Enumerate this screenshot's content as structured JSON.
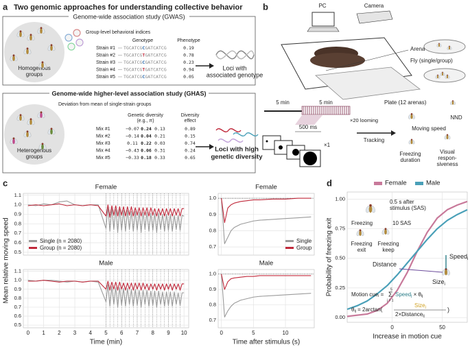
{
  "figure": {
    "a": {
      "label": "a",
      "title": "Two genomic approaches for understanding collective behavior",
      "gwas": {
        "title": "Genome-wide association study (GWAS)",
        "indices": "Group-level behavioral indices",
        "group": [
          "Homogenous",
          "groups"
        ],
        "genotype": "Genotype",
        "phenotype": "Phenotype",
        "rows": [
          {
            "name": "Strain #1",
            "prefix": "TGCATCG",
            "allele": "C",
            "suffix": "GATCATCG",
            "value": "0.19",
            "color": "#2b6cb0"
          },
          {
            "name": "Strain #2",
            "prefix": "TGCATCG",
            "allele": "T",
            "suffix": "GATCATCG",
            "value": "0.78",
            "color": "#c0283a"
          },
          {
            "name": "Strain #3",
            "prefix": "TGCATCG",
            "allele": "C",
            "suffix": "GATCATCG",
            "value": "0.23",
            "color": "#2b6cb0"
          },
          {
            "name": "Strain #4",
            "prefix": "TGCATCG",
            "allele": "T",
            "suffix": "GATCATCG",
            "value": "0.94",
            "color": "#c0283a"
          },
          {
            "name": "Strain #5",
            "prefix": "TGCATCG",
            "allele": "C",
            "suffix": "GATCATCG",
            "value": "0.05",
            "color": "#2b6cb0"
          }
        ],
        "result": [
          "Loci with",
          "associated genotype"
        ]
      },
      "ghas": {
        "title": "Genome-wide higher-level association study (GHAS)",
        "deviation": "Deviation from mean of single-strain groups",
        "group": [
          "Heterogenous",
          "groups"
        ],
        "diversity": [
          "Genetic diversity",
          "(e.g., π)"
        ],
        "effect": [
          "Diversity",
          "effect"
        ],
        "rows": [
          {
            "name": "Mix #1",
            "values": [
              "−0.07",
              "0.24",
              "0.13"
            ],
            "effect": "0.89",
            "color": "#5b3fa8"
          },
          {
            "name": "Mix #2",
            "values": [
              "−0.14",
              "0.04",
              "0.21"
            ],
            "effect": "0.15",
            "color": "#2b6cb0"
          },
          {
            "name": "Mix #3",
            "values": [
              "0.11",
              "0.22",
              "0.03"
            ],
            "effect": "0.74",
            "color": "#7a3fa8"
          },
          {
            "name": "Mix #4",
            "values": [
              "−0.43",
              "0.06",
              "0.31"
            ],
            "effect": "0.24",
            "color": "#c0283a"
          },
          {
            "name": "Mix #5",
            "values": [
              "−0.33",
              "0.18",
              "0.33"
            ],
            "effect": "0.65",
            "color": "#7a3fa8"
          }
        ],
        "result": [
          "Loci with high",
          "genetic diversity"
        ]
      }
    },
    "b": {
      "label": "b",
      "pc": "PC",
      "camera": "Camera",
      "arena": "Arena",
      "plate": "Plate (12 arenas)",
      "fly": "Fly (single/group)",
      "period1": "5 min",
      "period2": "5 min",
      "looming": "×20 looming",
      "duration": "500 ms",
      "repeat": "×1",
      "tracking": "Tracking",
      "speed": "Moving speed",
      "nnd": "NND",
      "freezing": [
        "Freezing",
        "duration"
      ],
      "visual": [
        "Visual",
        "respon-",
        "siveness"
      ]
    },
    "c": {
      "label": "c"
    },
    "d": {
      "label": "d",
      "sas": [
        "0.5 s after",
        "stimulus (SAS)"
      ],
      "freezing": "Freezing",
      "sas10": "10 SAS",
      "exit": [
        "Freezing",
        "exit"
      ],
      "keep": [
        "Freezing",
        "keep"
      ],
      "distance": "Distance",
      "speed": "Speed",
      "speed_sub": "i",
      "size": "Size",
      "size_sub": "i",
      "cue": {
        "lhs": "Motion cue",
        "lhs_sub": "i",
        "eq": " = ",
        "sum": "Σ",
        "sum_top": "5",
        "sum_bottom": "j = 1",
        "term": "Speed",
        "term_sub": "j",
        "times": " × θ",
        "times_sub": "ij"
      },
      "theta": {
        "lhs": "θ",
        "lhs_sub": "ij",
        "eq": " = 2arctan(",
        "num": "Size",
        "num_sub": "j",
        "den": "2×Distance",
        "den_sub": "ij",
        "close": ")"
      }
    }
  },
  "chart_data": [
    {
      "type": "line",
      "title": "Female",
      "ylabel": "Mean relative moving speed",
      "x": [
        0,
        0.5,
        1,
        1.5,
        2,
        2.5,
        3,
        3.5,
        4,
        4.5,
        5,
        5.125,
        5.25,
        5.375,
        5.5,
        5.625,
        5.75,
        5.875,
        6,
        6.125,
        6.25,
        6.375,
        6.5,
        6.625,
        6.75,
        6.875,
        7,
        7.125,
        7.25,
        7.375,
        7.5,
        7.625,
        7.75,
        7.875,
        8,
        8.125,
        8.25,
        8.375,
        8.5,
        8.625,
        8.75,
        8.875,
        9,
        9.125,
        9.25,
        9.375,
        9.5,
        9.625,
        9.75,
        9.875,
        10
      ],
      "series": [
        {
          "name": "Single (n = 2080)",
          "color": "#9a9a9a",
          "values": [
            1.0,
            0.99,
            1.01,
            1.0,
            1.03,
            1.04,
            1.0,
            0.99,
            1.0,
            1.0,
            0.75,
            0.98,
            0.72,
            0.96,
            0.74,
            0.95,
            0.71,
            0.95,
            0.73,
            0.94,
            0.72,
            0.94,
            0.74,
            0.93,
            0.72,
            0.93,
            0.73,
            0.92,
            0.71,
            0.92,
            0.74,
            0.92,
            0.72,
            0.91,
            0.73,
            0.91,
            0.71,
            0.91,
            0.74,
            0.9,
            0.72,
            0.9,
            0.73,
            0.9,
            0.72,
            0.89,
            0.74,
            0.89,
            0.73,
            0.89,
            0.88
          ]
        },
        {
          "name": "Group (n = 2080)",
          "color": "#c0283a",
          "values": [
            0.99,
            1.0,
            0.99,
            1.0,
            1.01,
            0.99,
            1.0,
            0.99,
            1.0,
            0.99,
            0.88,
            1.0,
            0.87,
            0.99,
            0.89,
            0.99,
            0.88,
            0.98,
            0.89,
            0.98,
            0.88,
            0.98,
            0.89,
            0.98,
            0.88,
            0.97,
            0.89,
            0.97,
            0.88,
            0.97,
            0.89,
            0.97,
            0.88,
            0.97,
            0.89,
            0.96,
            0.88,
            0.96,
            0.89,
            0.96,
            0.88,
            0.96,
            0.89,
            0.96,
            0.88,
            0.96,
            0.89,
            0.96,
            0.88,
            0.96,
            0.96
          ]
        }
      ],
      "stimulus_x": [
        5,
        5.25,
        5.5,
        5.75,
        6,
        6.25,
        6.5,
        6.75,
        7,
        7.25,
        7.5,
        7.75,
        8,
        8.25,
        8.5,
        8.75,
        9,
        9.25,
        9.5,
        9.75
      ],
      "xlim": [
        -0.3,
        10.3
      ],
      "xticks": [
        0,
        1,
        2,
        3,
        4,
        5,
        6,
        7,
        8,
        9,
        10
      ],
      "ylim": [
        0.47,
        1.12
      ],
      "yticks": [
        0.5,
        0.6,
        0.7,
        0.8,
        0.9,
        {
          "value": 1,
          "label": "1.0"
        },
        1.1
      ],
      "grid": true,
      "legend": "lower left"
    },
    {
      "type": "line",
      "title": "Female",
      "x": [
        0,
        0.5,
        1,
        1.5,
        2,
        3,
        4,
        5,
        6,
        8,
        10,
        12,
        14
      ],
      "series": [
        {
          "name": "Single",
          "color": "#9a9a9a",
          "values": [
            1.0,
            0.72,
            0.76,
            0.8,
            0.82,
            0.84,
            0.85,
            0.86,
            0.865,
            0.87,
            0.875,
            0.88,
            0.885
          ]
        },
        {
          "name": "Group",
          "color": "#c0283a",
          "values": [
            1.0,
            0.85,
            0.94,
            0.96,
            0.97,
            0.98,
            0.985,
            0.99,
            0.99,
            0.995,
            0.995,
            1.0,
            1.0
          ]
        }
      ],
      "reference": 1,
      "xlim": [
        -0.5,
        14.5
      ],
      "xticks": [
        0,
        5,
        10
      ],
      "ylim": [
        0.65,
        1.03
      ],
      "yticks": [
        0.7,
        0.8,
        0.9,
        {
          "value": 1,
          "label": "1.0"
        }
      ],
      "grid": true,
      "legend": "lower right"
    },
    {
      "type": "line",
      "title": "Male",
      "xlabel": "Time (min)",
      "x": [
        0,
        0.5,
        1,
        1.5,
        2,
        2.5,
        3,
        3.5,
        4,
        4.5,
        5,
        5.125,
        5.25,
        5.375,
        5.5,
        5.625,
        5.75,
        5.875,
        6,
        6.125,
        6.25,
        6.375,
        6.5,
        6.625,
        6.75,
        6.875,
        7,
        7.125,
        7.25,
        7.375,
        7.5,
        7.625,
        7.75,
        7.875,
        8,
        8.125,
        8.25,
        8.375,
        8.5,
        8.625,
        8.75,
        8.875,
        9,
        9.125,
        9.25,
        9.375,
        9.5,
        9.625,
        9.75,
        9.875,
        10
      ],
      "series": [
        {
          "color": "#9a9a9a",
          "values": [
            1.0,
            0.99,
            1.0,
            1.0,
            0.99,
            0.98,
            0.99,
            0.98,
            0.99,
            0.98,
            0.76,
            0.95,
            0.71,
            0.93,
            0.73,
            0.92,
            0.7,
            0.92,
            0.72,
            0.91,
            0.71,
            0.91,
            0.73,
            0.9,
            0.71,
            0.9,
            0.72,
            0.89,
            0.7,
            0.89,
            0.73,
            0.89,
            0.71,
            0.88,
            0.72,
            0.88,
            0.7,
            0.88,
            0.73,
            0.87,
            0.71,
            0.87,
            0.72,
            0.87,
            0.71,
            0.87,
            0.73,
            0.86,
            0.72,
            0.86,
            0.86
          ]
        },
        {
          "color": "#c0283a",
          "values": [
            0.99,
            0.99,
            1.0,
            0.99,
            0.98,
            0.99,
            0.99,
            0.98,
            0.99,
            0.99,
            0.9,
            0.99,
            0.89,
            0.98,
            0.9,
            0.98,
            0.89,
            0.98,
            0.9,
            0.97,
            0.89,
            0.97,
            0.9,
            0.97,
            0.89,
            0.97,
            0.9,
            0.97,
            0.89,
            0.97,
            0.9,
            0.96,
            0.89,
            0.96,
            0.9,
            0.96,
            0.89,
            0.96,
            0.9,
            0.96,
            0.89,
            0.96,
            0.9,
            0.96,
            0.89,
            0.96,
            0.9,
            0.96,
            0.89,
            0.96,
            0.96
          ]
        }
      ],
      "stimulus_x": [
        5,
        5.25,
        5.5,
        5.75,
        6,
        6.25,
        6.5,
        6.75,
        7,
        7.25,
        7.5,
        7.75,
        8,
        8.25,
        8.5,
        8.75,
        9,
        9.25,
        9.5,
        9.75
      ],
      "xlim": [
        -0.3,
        10.3
      ],
      "xticks": [
        0,
        1,
        2,
        3,
        4,
        5,
        6,
        7,
        8,
        9,
        10
      ],
      "ylim": [
        0.47,
        1.12
      ],
      "yticks": [
        0.5,
        0.6,
        0.7,
        0.8,
        0.9,
        {
          "value": 1,
          "label": "1.0"
        },
        1.1
      ],
      "grid": true
    },
    {
      "type": "line",
      "title": "Male",
      "xlabel": "Time after stimulus (s)",
      "x": [
        0,
        0.5,
        1,
        1.5,
        2,
        3,
        4,
        5,
        6,
        8,
        10,
        12,
        14
      ],
      "series": [
        {
          "color": "#9a9a9a",
          "values": [
            1.0,
            0.72,
            0.76,
            0.79,
            0.81,
            0.83,
            0.84,
            0.85,
            0.855,
            0.86,
            0.865,
            0.87,
            0.875
          ]
        },
        {
          "color": "#c0283a",
          "values": [
            1.0,
            0.9,
            0.95,
            0.97,
            0.975,
            0.98,
            0.985,
            0.985,
            0.99,
            0.99,
            0.99,
            0.99,
            0.99
          ]
        }
      ],
      "reference": 1,
      "xlim": [
        -0.5,
        14.5
      ],
      "xticks": [
        0,
        5,
        10
      ],
      "ylim": [
        0.65,
        1.03
      ],
      "yticks": [
        0.7,
        0.8,
        0.9,
        {
          "value": 1,
          "label": "1.0"
        }
      ],
      "grid": true
    },
    {
      "type": "line",
      "xlabel": "Increase in motion cue",
      "ylabel": "Probability of freezing exit",
      "x": [
        -45,
        -35,
        -25,
        -15,
        -5,
        5,
        15,
        25,
        35,
        45,
        55,
        65,
        75
      ],
      "series": [
        {
          "name": "Female",
          "color": "#c8799a",
          "values": [
            0.01,
            0.02,
            0.03,
            0.06,
            0.12,
            0.23,
            0.38,
            0.56,
            0.72,
            0.84,
            0.91,
            0.95,
            0.98
          ]
        },
        {
          "name": "Male",
          "color": "#4aa0b8",
          "values": [
            0.07,
            0.1,
            0.14,
            0.2,
            0.27,
            0.36,
            0.46,
            0.56,
            0.66,
            0.75,
            0.82,
            0.87,
            0.91
          ]
        }
      ],
      "xlim": [
        -45,
        75
      ],
      "xticks": [
        0,
        50
      ],
      "ylim": [
        -0.04,
        1.06
      ],
      "yticks": [
        {
          "value": 0,
          "label": "0.00"
        },
        {
          "value": 0.25,
          "label": "0.25"
        },
        {
          "value": 0.5,
          "label": "0.50"
        },
        {
          "value": 0.75,
          "label": "0.75"
        },
        {
          "value": 1,
          "label": "1.00"
        }
      ],
      "grid": true,
      "legend": "top"
    }
  ]
}
